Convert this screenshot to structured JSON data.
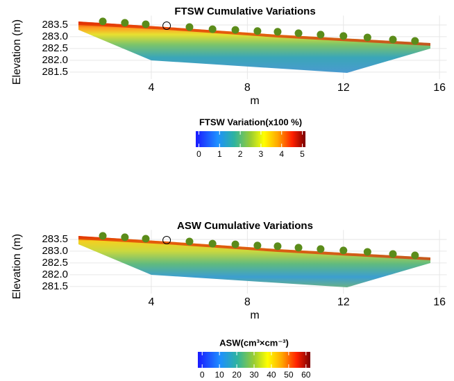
{
  "chart_data": [
    {
      "type": "scatter",
      "title": "FTSW Cumulative Variations",
      "x_label": "m",
      "y_label": "Elevation (m)",
      "xlim": [
        0.6,
        16.3
      ],
      "xticks": [
        4,
        8,
        12,
        16
      ],
      "ylim": [
        281.2,
        283.9
      ],
      "yticks": [
        281.5,
        {
          "value": 282,
          "label": "282.0"
        },
        282.5,
        {
          "value": 283,
          "label": "283.0"
        },
        283.5
      ],
      "grid": true,
      "series": [
        {
          "color": "#5b8c1a",
          "marker": "filled",
          "x": [
            1.98,
            2.9,
            3.77,
            5.59,
            6.55,
            7.5,
            8.42,
            9.26,
            10.13,
            11.05,
            12.0,
            13.0,
            14.06,
            14.98
          ],
          "y": [
            283.65,
            283.59,
            283.53,
            283.41,
            283.32,
            283.29,
            283.24,
            283.21,
            283.15,
            283.09,
            283.03,
            282.97,
            282.88,
            282.82
          ]
        },
        {
          "color": "#000000",
          "marker": "open",
          "x": [
            4.64
          ],
          "y": [
            283.47
          ]
        }
      ],
      "colorbar": {
        "title": "FTSW Variation(x100 %)",
        "clim": [
          -0.15,
          5.15
        ],
        "ticks": [
          0,
          1,
          2,
          3,
          4,
          5
        ]
      }
    },
    {
      "type": "scatter",
      "title": "ASW Cumulative Variations",
      "x_label": "m",
      "y_label": "Elevation (m)",
      "xlim": [
        0.6,
        16.3
      ],
      "xticks": [
        4,
        8,
        12,
        16
      ],
      "ylim": [
        281.2,
        283.9
      ],
      "yticks": [
        281.5,
        {
          "value": 282,
          "label": "282.0"
        },
        282.5,
        {
          "value": 283,
          "label": "283.0"
        },
        283.5
      ],
      "grid": true,
      "series": [
        {
          "color": "#5b8c1a",
          "marker": "filled",
          "x": [
            1.98,
            2.9,
            3.77,
            5.59,
            6.55,
            7.5,
            8.42,
            9.26,
            10.13,
            11.05,
            12.0,
            13.0,
            14.06,
            14.98
          ],
          "y": [
            283.65,
            283.59,
            283.53,
            283.41,
            283.32,
            283.29,
            283.24,
            283.21,
            283.15,
            283.09,
            283.03,
            282.97,
            282.88,
            282.82
          ]
        },
        {
          "color": "#000000",
          "marker": "open",
          "x": [
            4.64
          ],
          "y": [
            283.47
          ]
        }
      ],
      "colorbar": {
        "title": "ASW(cm³×cm⁻³)",
        "clim": [
          -2.5,
          62.5
        ],
        "ticks": [
          0,
          10,
          20,
          30,
          40,
          50,
          60
        ]
      }
    }
  ]
}
